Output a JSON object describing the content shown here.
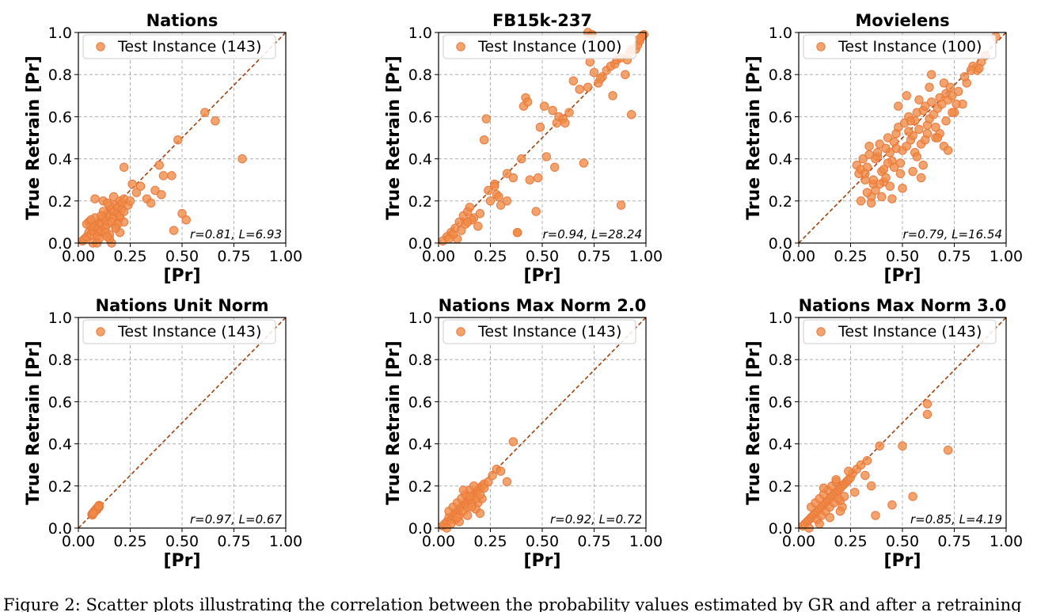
{
  "chart_data": [
    {
      "type": "scatter",
      "title": "Nations",
      "xlabel": "[Pr]",
      "ylabel": "True Retrain [Pr]",
      "xlim": [
        0,
        1
      ],
      "ylim": [
        0,
        1
      ],
      "xticks": [
        "0.00",
        "0.25",
        "0.50",
        "0.75",
        "1.00"
      ],
      "yticks": [
        "0.0",
        "0.2",
        "0.4",
        "0.6",
        "0.8",
        "1.0"
      ],
      "grid": true,
      "legend_position": "top-left",
      "series": [
        {
          "name": "Test Instance (143)",
          "color": "#f08a45",
          "x": [
            0.02,
            0.03,
            0.04,
            0.05,
            0.06,
            0.07,
            0.08,
            0.09,
            0.1,
            0.11,
            0.12,
            0.13,
            0.14,
            0.15,
            0.16,
            0.17,
            0.18,
            0.19,
            0.2,
            0.21,
            0.22,
            0.05,
            0.06,
            0.08,
            0.1,
            0.12,
            0.14,
            0.15,
            0.17,
            0.19,
            0.21,
            0.09,
            0.11,
            0.13,
            0.15,
            0.16,
            0.18,
            0.2,
            0.22,
            0.07,
            0.1,
            0.13,
            0.16,
            0.19,
            0.08,
            0.12,
            0.14,
            0.17,
            0.2,
            0.22,
            0.24,
            0.26,
            0.28,
            0.3,
            0.33,
            0.35,
            0.37,
            0.39,
            0.4,
            0.41,
            0.45,
            0.48,
            0.5,
            0.52,
            0.46,
            0.61,
            0.66,
            0.79,
            0.22,
            0.09,
            0.15,
            0.2,
            0.04,
            0.06,
            0.11,
            0.18,
            0.14,
            0.25
          ],
          "y": [
            0.01,
            0.02,
            0.03,
            0.05,
            0.04,
            0.06,
            0.08,
            0.07,
            0.1,
            0.09,
            0.12,
            0.11,
            0.14,
            0.13,
            0.16,
            0.15,
            0.18,
            0.17,
            0.2,
            0.19,
            0.21,
            0.1,
            0.08,
            0.12,
            0.05,
            0.15,
            0.09,
            0.18,
            0.12,
            0.14,
            0.16,
            0.03,
            0.06,
            0.07,
            0.04,
            0.1,
            0.08,
            0.12,
            0.1,
            0.0,
            0.02,
            0.05,
            0.0,
            0.09,
            0.21,
            0.2,
            0.19,
            0.22,
            0.13,
            0.15,
            0.18,
            0.28,
            0.24,
            0.27,
            0.21,
            0.19,
            0.25,
            0.37,
            0.23,
            0.32,
            0.32,
            0.49,
            0.14,
            0.11,
            0.06,
            0.62,
            0.58,
            0.4,
            0.36,
            0.0,
            0.02,
            0.05,
            0.09,
            0.11,
            0.13,
            0.07,
            0.03,
            0.2
          ]
        }
      ],
      "annotation": "r=0.81, L=6.93"
    },
    {
      "type": "scatter",
      "title": "FB15k-237",
      "xlabel": "[Pr]",
      "ylabel": "True Retrain [Pr]",
      "xlim": [
        0,
        1
      ],
      "ylim": [
        0,
        1
      ],
      "xticks": [
        "0.00",
        "0.25",
        "0.50",
        "0.75",
        "1.00"
      ],
      "yticks": [
        "0.0",
        "0.2",
        "0.4",
        "0.6",
        "0.8",
        "1.0"
      ],
      "grid": true,
      "legend_position": "top-left",
      "series": [
        {
          "name": "Test Instance (100)",
          "color": "#f08a45",
          "x": [
            0.02,
            0.04,
            0.06,
            0.08,
            0.1,
            0.12,
            0.14,
            0.15,
            0.17,
            0.11,
            0.13,
            0.09,
            0.16,
            0.2,
            0.22,
            0.23,
            0.24,
            0.27,
            0.28,
            0.29,
            0.3,
            0.33,
            0.36,
            0.38,
            0.4,
            0.41,
            0.42,
            0.43,
            0.47,
            0.48,
            0.49,
            0.51,
            0.52,
            0.55,
            0.57,
            0.58,
            0.6,
            0.61,
            0.65,
            0.68,
            0.7,
            0.72,
            0.73,
            0.75,
            0.77,
            0.79,
            0.81,
            0.83,
            0.85,
            0.86,
            0.88,
            0.9,
            0.92,
            0.93,
            0.95,
            0.96,
            0.97,
            0.98,
            0.99,
            0.72,
            0.74,
            0.78,
            0.88,
            0.93,
            0.38,
            0.27,
            0.14,
            0.07,
            0.05,
            0.19,
            0.25,
            0.44,
            0.63,
            0.84,
            0.91,
            0.97,
            0.33,
            0.56
          ],
          "y": [
            0.01,
            0.03,
            0.05,
            0.07,
            0.1,
            0.13,
            0.15,
            0.17,
            0.12,
            0.06,
            0.09,
            0.02,
            0.11,
            0.14,
            0.49,
            0.59,
            0.25,
            0.28,
            0.23,
            0.22,
            0.18,
            0.33,
            0.31,
            0.05,
            0.4,
            0.65,
            0.69,
            0.67,
            0.15,
            0.31,
            0.55,
            0.65,
            0.41,
            0.63,
            0.57,
            0.6,
            0.59,
            0.57,
            0.77,
            0.73,
            0.38,
            0.74,
            0.86,
            0.81,
            0.76,
            0.79,
            0.82,
            0.84,
            0.85,
            0.87,
            0.88,
            0.8,
            0.9,
            0.61,
            0.92,
            0.94,
            0.96,
            0.98,
            0.99,
            1.0,
            0.99,
            0.78,
            0.18,
            0.92,
            0.05,
            0.27,
            0.1,
            0.04,
            0.02,
            0.08,
            0.2,
            0.3,
            0.62,
            0.7,
            0.87,
            0.97,
            0.2,
            0.36
          ]
        }
      ],
      "annotation": "r=0.94, L=28.24"
    },
    {
      "type": "scatter",
      "title": "Movielens",
      "xlabel": "[Pr]",
      "ylabel": "True Retrain [Pr]",
      "xlim": [
        0,
        1
      ],
      "ylim": [
        0,
        1
      ],
      "xticks": [
        "0.00",
        "0.25",
        "0.50",
        "0.75",
        "1.00"
      ],
      "yticks": [
        "0.0",
        "0.2",
        "0.4",
        "0.6",
        "0.8",
        "1.0"
      ],
      "grid": true,
      "legend_position": "top-left",
      "series": [
        {
          "name": "Test Instance (100)",
          "color": "#f08a45",
          "x": [
            0.28,
            0.29,
            0.3,
            0.31,
            0.32,
            0.33,
            0.34,
            0.35,
            0.36,
            0.37,
            0.38,
            0.39,
            0.4,
            0.41,
            0.42,
            0.43,
            0.44,
            0.45,
            0.46,
            0.47,
            0.48,
            0.49,
            0.5,
            0.51,
            0.52,
            0.53,
            0.54,
            0.55,
            0.56,
            0.57,
            0.58,
            0.59,
            0.6,
            0.61,
            0.62,
            0.63,
            0.64,
            0.65,
            0.66,
            0.67,
            0.68,
            0.69,
            0.7,
            0.71,
            0.72,
            0.73,
            0.74,
            0.75,
            0.77,
            0.79,
            0.81,
            0.84,
            0.86,
            0.88,
            0.9,
            0.95,
            0.33,
            0.36,
            0.4,
            0.44,
            0.48,
            0.52,
            0.56,
            0.6,
            0.64,
            0.68,
            0.72,
            0.3,
            0.35,
            0.42,
            0.46,
            0.5,
            0.55,
            0.58,
            0.62,
            0.66,
            0.7,
            0.74,
            0.54,
            0.57,
            0.61,
            0.47,
            0.39,
            0.34,
            0.38,
            0.43,
            0.49,
            0.53,
            0.59,
            0.63,
            0.67,
            0.71,
            0.76,
            0.8,
            0.83,
            0.87,
            0.45,
            0.41,
            0.37,
            0.32
          ],
          "y": [
            0.37,
            0.33,
            0.35,
            0.4,
            0.3,
            0.36,
            0.42,
            0.22,
            0.28,
            0.25,
            0.41,
            0.47,
            0.34,
            0.29,
            0.45,
            0.5,
            0.43,
            0.39,
            0.48,
            0.52,
            0.55,
            0.38,
            0.44,
            0.57,
            0.46,
            0.6,
            0.49,
            0.51,
            0.58,
            0.62,
            0.54,
            0.47,
            0.63,
            0.65,
            0.56,
            0.59,
            0.67,
            0.61,
            0.5,
            0.64,
            0.69,
            0.66,
            0.46,
            0.71,
            0.68,
            0.74,
            0.7,
            0.62,
            0.72,
            0.66,
            0.76,
            0.84,
            0.82,
            0.86,
            0.89,
            0.98,
            0.24,
            0.3,
            0.22,
            0.27,
            0.65,
            0.7,
            0.43,
            0.37,
            0.8,
            0.52,
            0.44,
            0.2,
            0.19,
            0.31,
            0.36,
            0.26,
            0.34,
            0.68,
            0.52,
            0.55,
            0.76,
            0.62,
            0.58,
            0.41,
            0.49,
            0.45,
            0.28,
            0.46,
            0.43,
            0.38,
            0.33,
            0.53,
            0.31,
            0.74,
            0.5,
            0.58,
            0.66,
            0.79,
            0.82,
            0.83,
            0.21,
            0.35,
            0.4,
            0.33
          ]
        }
      ],
      "annotation": "r=0.79, L=16.54"
    },
    {
      "type": "scatter",
      "title": "Nations Unit Norm",
      "xlabel": "[Pr]",
      "ylabel": "True Retrain [Pr]",
      "xlim": [
        0,
        1
      ],
      "ylim": [
        0,
        1
      ],
      "xticks": [
        "0.00",
        "0.25",
        "0.50",
        "0.75",
        "1.00"
      ],
      "yticks": [
        "0.0",
        "0.2",
        "0.4",
        "0.6",
        "0.8",
        "1.0"
      ],
      "grid": true,
      "legend_position": "top-left",
      "series": [
        {
          "name": "Test Instance (143)",
          "color": "#f08a45",
          "x": [
            0.065,
            0.07,
            0.075,
            0.08,
            0.085,
            0.09,
            0.095,
            0.1,
            0.07,
            0.08,
            0.09,
            0.1,
            0.075,
            0.085,
            0.095,
            0.068,
            0.078,
            0.088,
            0.098,
            0.072
          ],
          "y": [
            0.065,
            0.072,
            0.078,
            0.083,
            0.09,
            0.095,
            0.1,
            0.108,
            0.068,
            0.08,
            0.088,
            0.1,
            0.075,
            0.085,
            0.097,
            0.062,
            0.076,
            0.091,
            0.104,
            0.07
          ]
        }
      ],
      "annotation": "r=0.97, L=0.67"
    },
    {
      "type": "scatter",
      "title": "Nations Max Norm 2.0",
      "xlabel": "[Pr]",
      "ylabel": "True Retrain [Pr]",
      "xlim": [
        0,
        1
      ],
      "ylim": [
        0,
        1
      ],
      "xticks": [
        "0.00",
        "0.25",
        "0.50",
        "0.75",
        "1.00"
      ],
      "yticks": [
        "0.0",
        "0.2",
        "0.4",
        "0.6",
        "0.8",
        "1.0"
      ],
      "grid": true,
      "legend_position": "top-left",
      "series": [
        {
          "name": "Test Instance (143)",
          "color": "#f08a45",
          "x": [
            0.02,
            0.03,
            0.04,
            0.05,
            0.06,
            0.07,
            0.08,
            0.09,
            0.1,
            0.11,
            0.12,
            0.13,
            0.14,
            0.15,
            0.16,
            0.17,
            0.18,
            0.19,
            0.2,
            0.21,
            0.22,
            0.05,
            0.07,
            0.09,
            0.11,
            0.13,
            0.15,
            0.17,
            0.19,
            0.21,
            0.08,
            0.1,
            0.12,
            0.14,
            0.16,
            0.18,
            0.2,
            0.06,
            0.1,
            0.14,
            0.18,
            0.22,
            0.24,
            0.26,
            0.28,
            0.3,
            0.33,
            0.36,
            0.12,
            0.16,
            0.2,
            0.04,
            0.09,
            0.15
          ],
          "y": [
            0.01,
            0.02,
            0.03,
            0.05,
            0.04,
            0.06,
            0.07,
            0.08,
            0.09,
            0.1,
            0.11,
            0.12,
            0.13,
            0.14,
            0.15,
            0.16,
            0.17,
            0.18,
            0.19,
            0.2,
            0.21,
            0.08,
            0.1,
            0.12,
            0.14,
            0.16,
            0.18,
            0.2,
            0.12,
            0.14,
            0.04,
            0.06,
            0.08,
            0.1,
            0.12,
            0.14,
            0.16,
            0.02,
            0.03,
            0.06,
            0.09,
            0.19,
            0.22,
            0.25,
            0.28,
            0.27,
            0.22,
            0.41,
            0.18,
            0.1,
            0.07,
            0.0,
            0.05,
            0.15
          ]
        }
      ],
      "annotation": "r=0.92, L=0.72"
    },
    {
      "type": "scatter",
      "title": "Nations Max Norm 3.0",
      "xlabel": "[Pr]",
      "ylabel": "True Retrain [Pr]",
      "xlim": [
        0,
        1
      ],
      "ylim": [
        0,
        1
      ],
      "xticks": [
        "0.00",
        "0.25",
        "0.50",
        "0.75",
        "1.00"
      ],
      "yticks": [
        "0.0",
        "0.2",
        "0.4",
        "0.6",
        "0.8",
        "1.0"
      ],
      "grid": true,
      "legend_position": "top-left",
      "series": [
        {
          "name": "Test Instance (143)",
          "color": "#f08a45",
          "x": [
            0.02,
            0.03,
            0.04,
            0.05,
            0.06,
            0.07,
            0.08,
            0.09,
            0.1,
            0.11,
            0.12,
            0.13,
            0.14,
            0.15,
            0.16,
            0.17,
            0.18,
            0.19,
            0.2,
            0.21,
            0.22,
            0.23,
            0.24,
            0.25,
            0.06,
            0.08,
            0.1,
            0.12,
            0.14,
            0.16,
            0.18,
            0.2,
            0.22,
            0.09,
            0.11,
            0.13,
            0.15,
            0.17,
            0.19,
            0.21,
            0.05,
            0.1,
            0.15,
            0.2,
            0.26,
            0.28,
            0.3,
            0.32,
            0.35,
            0.37,
            0.39,
            0.45,
            0.5,
            0.55,
            0.62,
            0.62,
            0.72,
            0.27,
            0.33,
            0.12,
            0.18,
            0.24
          ],
          "y": [
            0.01,
            0.02,
            0.03,
            0.04,
            0.05,
            0.06,
            0.07,
            0.08,
            0.09,
            0.1,
            0.11,
            0.12,
            0.13,
            0.14,
            0.15,
            0.16,
            0.17,
            0.18,
            0.19,
            0.2,
            0.21,
            0.22,
            0.23,
            0.24,
            0.1,
            0.12,
            0.14,
            0.16,
            0.18,
            0.2,
            0.22,
            0.13,
            0.15,
            0.04,
            0.06,
            0.08,
            0.1,
            0.12,
            0.14,
            0.1,
            0.0,
            0.02,
            0.05,
            0.08,
            0.26,
            0.28,
            0.3,
            0.25,
            0.2,
            0.06,
            0.39,
            0.11,
            0.39,
            0.15,
            0.59,
            0.54,
            0.37,
            0.17,
            0.32,
            0.19,
            0.23,
            0.27
          ]
        }
      ],
      "annotation": "r=0.85, L=4.19"
    }
  ],
  "caption": "Figure 2:  Scatter plots illustrating the correlation between the probability values estimated by GR and after a retraining"
}
